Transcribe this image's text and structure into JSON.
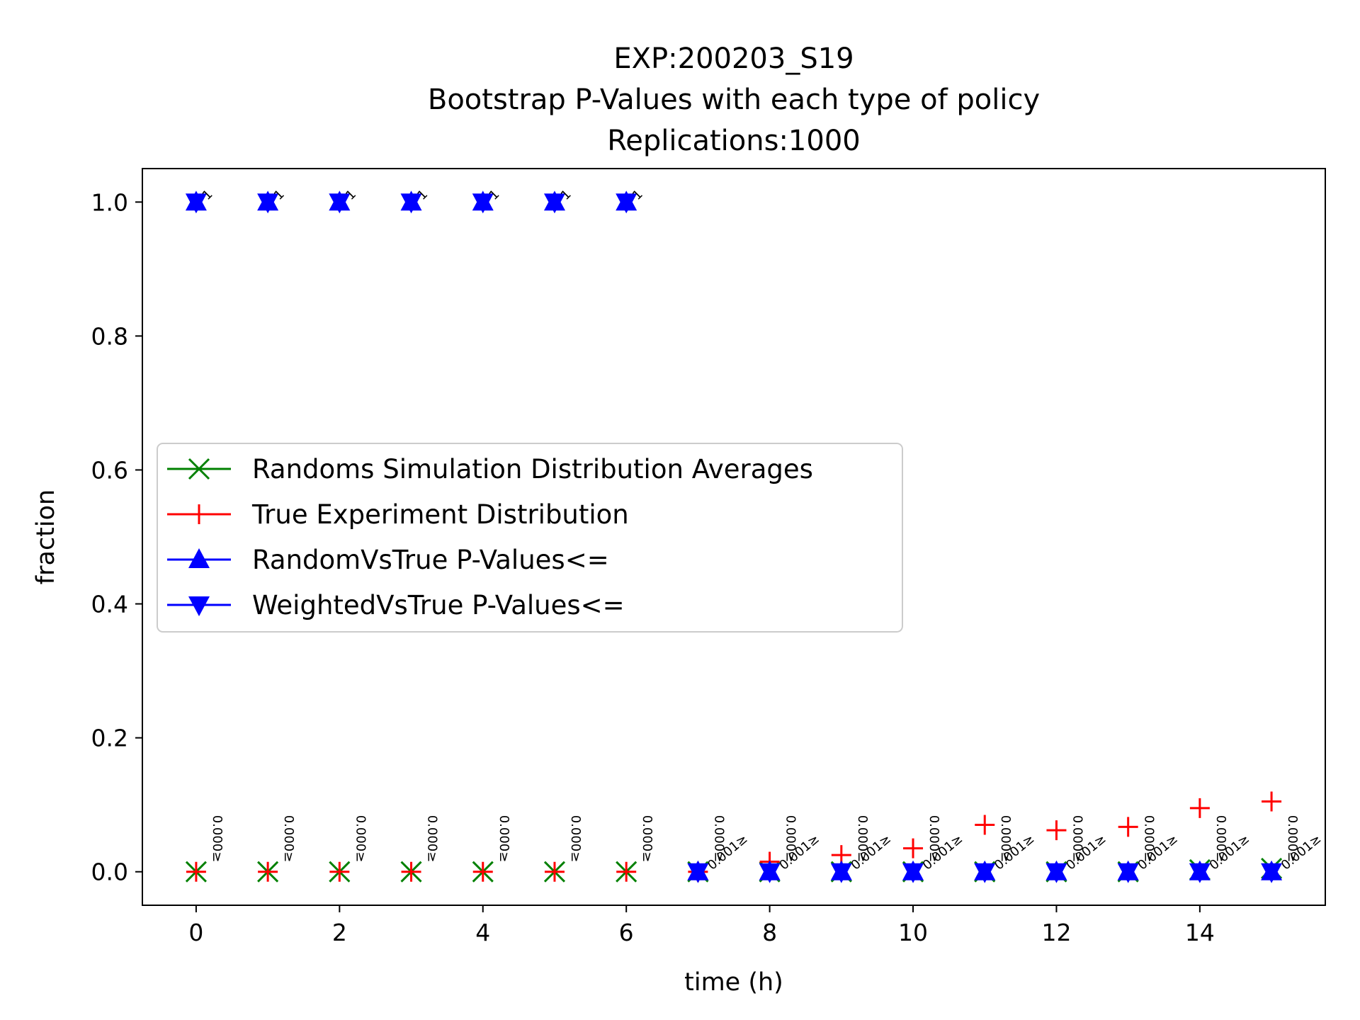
{
  "chart_data": {
    "type": "line",
    "title": [
      "EXP:200203_S19",
      "Bootstrap P-Values with each type of policy",
      "Replications:1000"
    ],
    "xlabel": "time (h)",
    "ylabel": "fraction",
    "xlim": [
      -0.75,
      15.75
    ],
    "ylim": [
      -0.05,
      1.05
    ],
    "xticks": [
      0,
      2,
      4,
      6,
      8,
      10,
      12,
      14
    ],
    "yticks": [
      0.0,
      0.2,
      0.4,
      0.6,
      0.8,
      1.0
    ],
    "grid": false,
    "legend_position": "center-left",
    "x": [
      0,
      1,
      2,
      3,
      4,
      5,
      6,
      7,
      8,
      9,
      10,
      11,
      12,
      13,
      14,
      15
    ],
    "series": [
      {
        "name": "Randoms Simulation Distribution Averages",
        "marker": "x",
        "color": "#008000",
        "values": [
          0,
          0,
          0,
          0,
          0,
          0,
          0,
          0,
          0,
          0,
          0,
          0,
          0,
          0,
          0.003,
          0.005
        ]
      },
      {
        "name": "True Experiment Distribution",
        "marker": "+",
        "color": "#ff0000",
        "values": [
          0,
          0,
          0,
          0,
          0,
          0,
          0,
          0,
          0.015,
          0.025,
          0.035,
          0.07,
          0.062,
          0.067,
          0.095,
          0.105
        ]
      },
      {
        "name": "RandomVsTrue P-Values<=",
        "marker": "triangle-up",
        "color": "#0000ff",
        "values": [
          1,
          1,
          1,
          1,
          1,
          1,
          1,
          0,
          0,
          0,
          0,
          0,
          0,
          0,
          0,
          0
        ]
      },
      {
        "name": "WeightedVsTrue P-Values<=",
        "marker": "triangle-down",
        "color": "#0000ff",
        "values": [
          1,
          1,
          1,
          1,
          1,
          1,
          1,
          0,
          0,
          0,
          0,
          0,
          0,
          0,
          0,
          0
        ]
      }
    ],
    "annotations": {
      "top_label": "1",
      "top_label_x": [
        0,
        1,
        2,
        3,
        4,
        5,
        6
      ],
      "top_label_y": 1.0,
      "vertical_label": "0.000≥",
      "vertical_label_x": [
        0,
        1,
        2,
        3,
        4,
        5,
        6,
        7,
        8,
        9,
        10,
        11,
        12,
        13,
        14,
        15
      ],
      "vertical_label_y": 0.0,
      "diagonal_label": "0.001≥",
      "diagonal_label_x": [
        7,
        8,
        9,
        10,
        11,
        12,
        13,
        14,
        15
      ],
      "diagonal_label_y": 0.0
    }
  }
}
